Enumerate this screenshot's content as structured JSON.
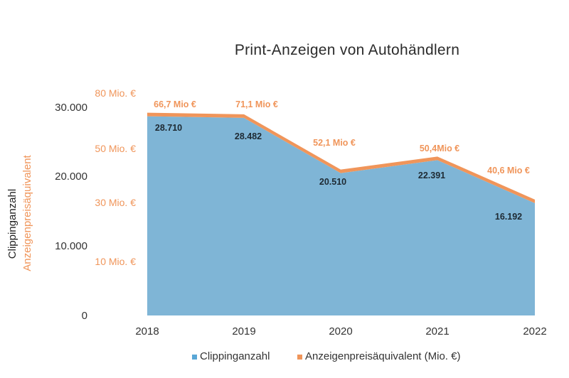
{
  "chart_data": {
    "type": "area",
    "title": "Print-Anzeigen von Autohändlern",
    "categories": [
      "2018",
      "2019",
      "2020",
      "2021",
      "2022"
    ],
    "ylabel_left": "Clippinganzahl",
    "ylabel_right": "Anzeigenpreisäquivalent",
    "ylim_left": [
      0,
      30000
    ],
    "left_ticks": [
      "0",
      "10.000",
      "20.000",
      "30.000"
    ],
    "right_ticks": [
      "10 Mio. €",
      "30 Mio. €",
      "50 Mio. €",
      "80 Mio. €"
    ],
    "series": [
      {
        "name": "Clippinganzahl",
        "values": [
          28710,
          28482,
          20510,
          22391,
          16192
        ],
        "labels": [
          "28.710",
          "28.482",
          "20.510",
          "22.391",
          "16.192"
        ],
        "color": "#7fb5d6"
      },
      {
        "name": "Anzeigenpreisäquivalent (Mio. €)",
        "values": [
          66.7,
          71.1,
          52.1,
          50.4,
          40.6
        ],
        "labels": [
          "66,7 Mio €",
          "71,1 Mio €",
          "52,1 Mio €",
          "50,4Mio €",
          "40,6 Mio €"
        ],
        "color": "#f0955a"
      }
    ],
    "legend": [
      {
        "label": "Clippinganzahl",
        "color": "#5aa7d6"
      },
      {
        "label": "Anzeigenpreisäquivalent (Mio. €)",
        "color": "#f0955a"
      }
    ]
  }
}
